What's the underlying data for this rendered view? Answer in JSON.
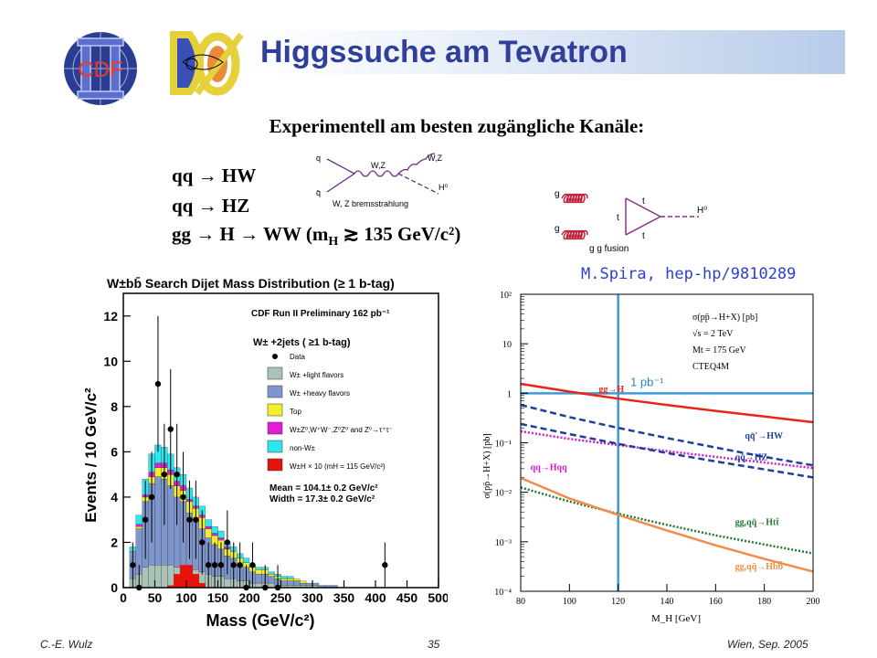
{
  "slide": {
    "title": "Higgssuche am Tevatron",
    "subtitle": "Experimentell am besten zugängliche Kanäle:",
    "channels": [
      {
        "text": "qq → HW"
      },
      {
        "text": "qq → HZ"
      },
      {
        "text_main": "gg → H → WW (m",
        "text_sub": "H",
        "text_tail": " ≳ 135 GeV/c²)"
      }
    ],
    "reference": "M.Spira, hep-hp/9810289",
    "footer": {
      "author": "C.-E. Wulz",
      "page": "35",
      "place_date": "Wien, Sep. 2005"
    }
  },
  "logos": {
    "cdf": "CDF",
    "d0": "DØ"
  },
  "feynman_wz": {
    "labels": {
      "q": "q",
      "qbar": "q̄",
      "wz1": "W,Z",
      "wz2": "W,Z",
      "h": "H⁰"
    },
    "caption": "W, Z bremsstrahlung"
  },
  "feynman_gg": {
    "labels": {
      "g1": "g",
      "g2": "g",
      "t1": "t",
      "t2": "t",
      "t3": "t",
      "h": "H⁰"
    },
    "caption": "g g fusion"
  },
  "chart_data": [
    {
      "type": "bar",
      "title": "W±bb̄ Search Dijet Mass Distribution (≥ 1 b-tag)",
      "xlabel": "Mass (GeV/c²)",
      "ylabel": "Events / 10 GeV/c²",
      "xlim": [
        0,
        500
      ],
      "ylim": [
        0,
        13
      ],
      "x_ticks": [
        "0",
        "50",
        "100",
        "150",
        "200",
        "250",
        "300",
        "350",
        "400",
        "450",
        "500"
      ],
      "y_ticks": [
        "0",
        "2",
        "4",
        "6",
        "8",
        "10",
        "12"
      ],
      "annotation": "CDF Run II Preliminary  162 pb⁻¹",
      "selection": "W± +2jets ( ≥1 b-tag)",
      "legend_title": "",
      "legend": [
        {
          "name": "Data",
          "color": "#000000"
        },
        {
          "name": "W± +light flavors",
          "color": "#a9c3b6"
        },
        {
          "name": "W± +heavy flavors",
          "color": "#7f96cc"
        },
        {
          "name": "Top",
          "color": "#f2ee2a"
        },
        {
          "name": "W±Z⁰,W⁺W⁻,Z⁰Z⁰ and Z⁰→τ⁺τ⁻",
          "color": "#e31cd6"
        },
        {
          "name": "non-W±",
          "color": "#2ee6ee"
        },
        {
          "name": "W±H × 10 (mH = 115 GeV/c²)",
          "color": "#e8120d"
        }
      ],
      "stats": [
        "Mean = 104.1± 0.2 GeV/c²",
        "Width = 17.3± 0.2 GeV/c²"
      ],
      "x_centers": [
        15,
        25,
        35,
        45,
        55,
        65,
        75,
        85,
        95,
        105,
        115,
        125,
        135,
        145,
        155,
        165,
        175,
        185,
        195,
        205,
        215,
        225,
        235,
        245,
        255,
        265,
        275,
        285,
        295,
        305,
        315,
        325,
        335,
        345
      ],
      "series": [
        {
          "name": "W± +light flavors",
          "values": [
            0.4,
            0.6,
            0.9,
            1.0,
            1.0,
            1.0,
            1.0,
            0.9,
            0.9,
            0.8,
            0.8,
            0.7,
            0.6,
            0.5,
            0.5,
            0.4,
            0.4,
            0.3,
            0.3,
            0.2,
            0.2,
            0.2,
            0.2,
            0.1,
            0.1,
            0.1,
            0.1,
            0.1,
            0.1,
            0.1,
            0.0,
            0.0,
            0.0,
            0.0
          ]
        },
        {
          "name": "W± +heavy flavors",
          "values": [
            1.2,
            2.0,
            2.9,
            3.6,
            3.9,
            3.8,
            3.5,
            3.1,
            2.9,
            2.5,
            2.2,
            1.9,
            1.6,
            1.4,
            1.2,
            1.0,
            0.9,
            0.7,
            0.6,
            0.5,
            0.4,
            0.4,
            0.3,
            0.3,
            0.2,
            0.2,
            0.2,
            0.1,
            0.1,
            0.1,
            0.1,
            0.1,
            0.1,
            0.0
          ]
        },
        {
          "name": "Top",
          "values": [
            0.0,
            0.1,
            0.2,
            0.3,
            0.4,
            0.5,
            0.5,
            0.5,
            0.5,
            0.5,
            0.5,
            0.5,
            0.4,
            0.4,
            0.4,
            0.3,
            0.3,
            0.3,
            0.2,
            0.2,
            0.2,
            0.2,
            0.1,
            0.1,
            0.1,
            0.1,
            0.1,
            0.1,
            0.0,
            0.0,
            0.0,
            0.0,
            0.0,
            0.0
          ]
        },
        {
          "name": "W±Z⁰,W⁺W⁻,Z⁰Z⁰ and Z⁰→τ⁺τ⁻",
          "values": [
            0.0,
            0.1,
            0.1,
            0.2,
            0.2,
            0.2,
            0.2,
            0.2,
            0.2,
            0.1,
            0.1,
            0.1,
            0.1,
            0.1,
            0.1,
            0.1,
            0.0,
            0.0,
            0.0,
            0.0,
            0.0,
            0.0,
            0.0,
            0.0,
            0.0,
            0.0,
            0.0,
            0.0,
            0.0,
            0.0,
            0.0,
            0.0,
            0.0,
            0.0
          ]
        },
        {
          "name": "non-W±",
          "values": [
            0.2,
            0.4,
            0.7,
            0.8,
            0.8,
            0.7,
            0.7,
            0.6,
            0.5,
            0.5,
            0.4,
            0.4,
            0.3,
            0.3,
            0.3,
            0.2,
            0.2,
            0.2,
            0.2,
            0.1,
            0.1,
            0.1,
            0.1,
            0.1,
            0.1,
            0.1,
            0.0,
            0.0,
            0.0,
            0.0,
            0.0,
            0.0,
            0.0,
            0.0
          ]
        }
      ],
      "signal": {
        "name": "W±H × 10 (mH = 115 GeV/c²)",
        "x": [
          75,
          85,
          95,
          105,
          115,
          125
        ],
        "values": [
          0.1,
          0.6,
          1.0,
          1.0,
          0.6,
          0.2
        ]
      },
      "data_points": {
        "x": [
          15,
          25,
          35,
          45,
          55,
          65,
          75,
          85,
          95,
          105,
          115,
          125,
          135,
          145,
          155,
          165,
          175,
          185,
          195,
          205,
          225,
          245,
          415
        ],
        "y": [
          1,
          0,
          3,
          4,
          9,
          5,
          7,
          5,
          4,
          3,
          3,
          2,
          1,
          1,
          1,
          2,
          1,
          1,
          0,
          1,
          0,
          0,
          1
        ]
      }
    },
    {
      "type": "line",
      "title": "",
      "xlabel": "M_H [GeV]",
      "ylabel": "σ(pp̄→H+X) [pb]",
      "log_y": true,
      "xlim": [
        80,
        200
      ],
      "ylim": [
        0.0001,
        100
      ],
      "x_ticks": [
        "80",
        "100",
        "120",
        "140",
        "160",
        "180",
        "200"
      ],
      "y_ticks": [
        "10²",
        "10",
        "1",
        "10⁻¹",
        "10⁻²",
        "10⁻³",
        "10⁻⁴"
      ],
      "legend_text": [
        "σ(pp̄→H+X) [pb]",
        "√s = 2 TeV",
        "Mt = 175 GeV",
        "CTEQ4M"
      ],
      "reference_lines": {
        "vertical_x": 120,
        "horizontal_y": 1,
        "horizontal_label": "1 pb⁻¹"
      },
      "x": [
        80,
        100,
        120,
        140,
        160,
        180,
        200
      ],
      "series": [
        {
          "name": "gg→H",
          "color": "#e8241b",
          "style": "solid",
          "values": [
            1.55,
            1.08,
            0.78,
            0.58,
            0.44,
            0.34,
            0.26
          ]
        },
        {
          "name": "qq̄'→HW",
          "color": "#1f3e9a",
          "style": "dashed",
          "values": [
            0.58,
            0.33,
            0.2,
            0.125,
            0.08,
            0.052,
            0.035
          ]
        },
        {
          "name": "qq→Hqq",
          "color": "#d11ad0",
          "style": "dotted",
          "values": [
            0.17,
            0.12,
            0.09,
            0.068,
            0.052,
            0.04,
            0.031
          ]
        },
        {
          "name": "qq̄→HZ",
          "color": "#1f3e9a",
          "style": "dashed",
          "values": [
            0.24,
            0.15,
            0.095,
            0.062,
            0.042,
            0.029,
            0.02
          ]
        },
        {
          "name": "gg,qq̄→Htt̄",
          "color": "#1d7a2d",
          "style": "dotted",
          "values": [
            0.0125,
            0.0065,
            0.0037,
            0.0022,
            0.00135,
            0.00088,
            0.00058
          ]
        },
        {
          "name": "gg,qq̄→Hbb̄",
          "color": "#f28c4a",
          "style": "solid",
          "values": [
            0.0195,
            0.0075,
            0.0035,
            0.0017,
            0.00085,
            0.00045,
            0.00025
          ]
        }
      ]
    }
  ]
}
